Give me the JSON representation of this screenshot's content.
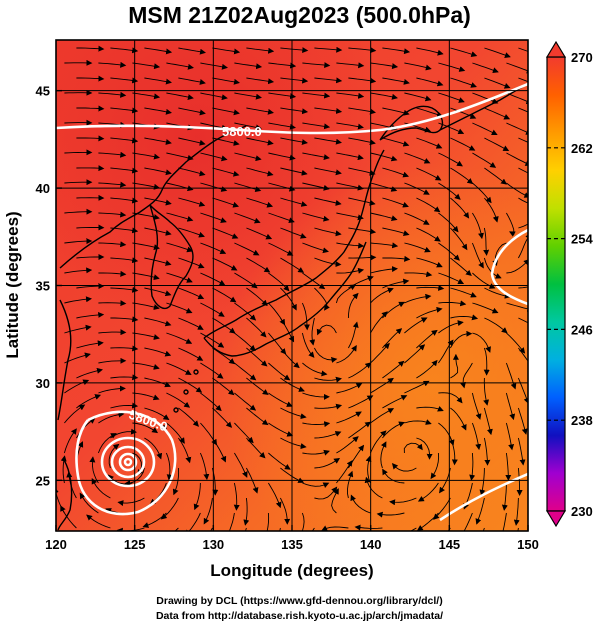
{
  "title": "MSM 21Z02Aug2023 (500.0hPa)",
  "xaxis": {
    "label": "Longitude (degrees)",
    "ticks": [
      "120",
      "125",
      "130",
      "135",
      "140",
      "145",
      "150"
    ],
    "range": [
      120,
      150
    ]
  },
  "yaxis": {
    "label": "Latitude (degrees)",
    "ticks": [
      "25",
      "30",
      "35",
      "40",
      "45"
    ],
    "range": [
      22.4,
      47.6
    ]
  },
  "contour_labels": [
    "5800.0",
    "5800.0"
  ],
  "colorbar": {
    "ticks": [
      "270",
      "262",
      "254",
      "246",
      "238",
      "230"
    ],
    "range": [
      230,
      270
    ],
    "colors": [
      "#e0008a",
      "#a000d0",
      "#1010c0",
      "#0060ff",
      "#00b0e0",
      "#00c8a0",
      "#00c040",
      "#60d000",
      "#c0e000",
      "#ffd000",
      "#ff9a00",
      "#ff6000",
      "#f23b2e"
    ]
  },
  "credits": {
    "line1": "Drawing by DCL (https://www.gfd-dennou.org/library/dcl/)",
    "line2": "Data from http://database.rish.kyoto-u.ac.jp/arch/jmadata/"
  }
}
